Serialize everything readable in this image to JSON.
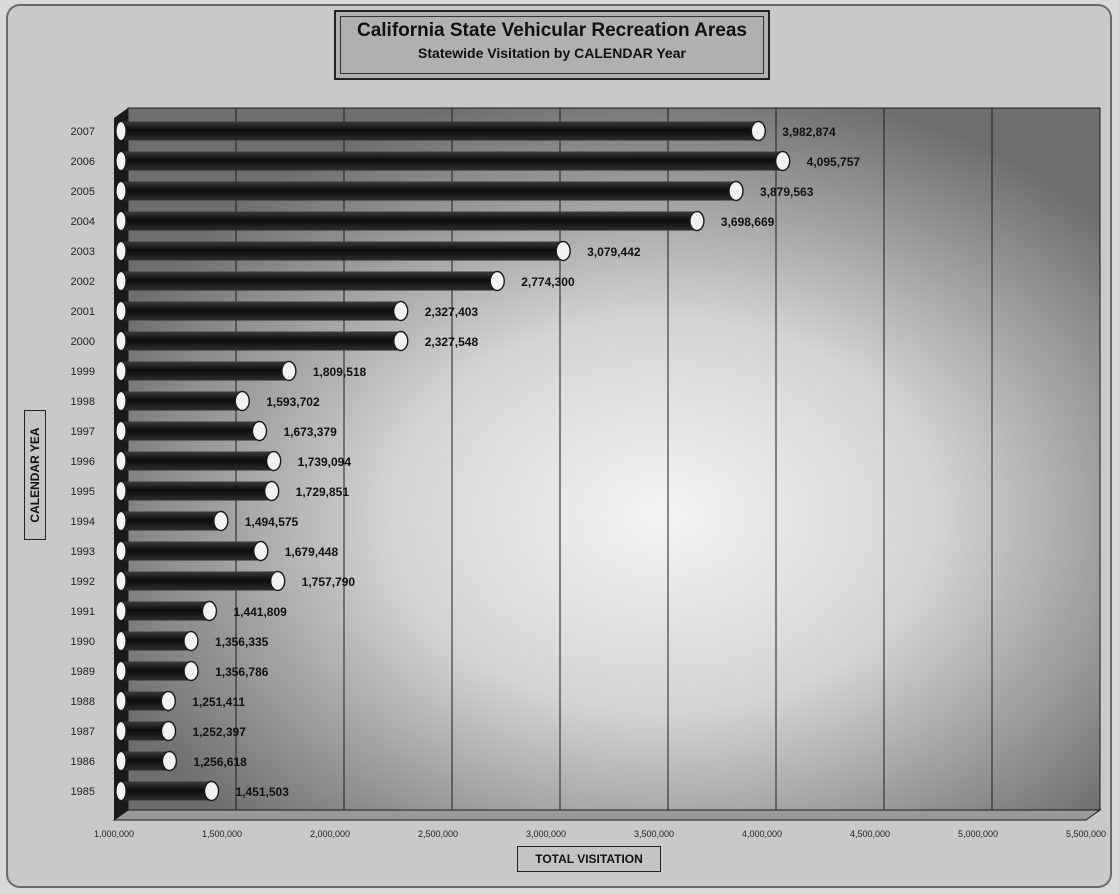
{
  "chart_data": {
    "type": "bar",
    "orientation": "horizontal",
    "title": "California State Vehicular Recreation Areas",
    "subtitle": "Statewide Visitation by CALENDAR Year",
    "xlabel": "TOTAL VISITATION",
    "ylabel": "CALENDAR YEA",
    "xlim": [
      1000000,
      5500000
    ],
    "xticks": [
      "1,000,000",
      "1,500,000",
      "2,000,000",
      "2,500,000",
      "3,000,000",
      "3,500,000",
      "4,000,000",
      "4,500,000",
      "5,000,000",
      "5,500,000"
    ],
    "grid": "vertical",
    "categories": [
      "2007",
      "2006",
      "2005",
      "2004",
      "2003",
      "2002",
      "2001",
      "2000",
      "1999",
      "1998",
      "1997",
      "1996",
      "1995",
      "1994",
      "1993",
      "1992",
      "1991",
      "1990",
      "1989",
      "1988",
      "1987",
      "1986",
      "1985"
    ],
    "values": [
      3982874,
      4095757,
      3879563,
      3698669,
      3079442,
      2774300,
      2327403,
      2327548,
      1809518,
      1593702,
      1673379,
      1739094,
      1729851,
      1494575,
      1679448,
      1757790,
      1441809,
      1356335,
      1356786,
      1251411,
      1252397,
      1256618,
      1451503
    ],
    "value_labels": [
      "3,982,874",
      "4,095,757",
      "3,879,563",
      "3,698,669",
      "3,079,442",
      "2,774,300",
      "2,327,403",
      "2,327,548",
      "1,809,518",
      "1,593,702",
      "1,673,379",
      "1,739,094",
      "1,729,851",
      "1,494,575",
      "1,679,448",
      "1,757,790",
      "1,441,809",
      "1,356,335",
      "1,356,786",
      "1,251,411",
      "1,252,397",
      "1,256,618",
      "1,451,503"
    ],
    "colors": {
      "bar": "#141414",
      "bar_cap": "#f2f2f2",
      "plot_wall": "#d2d2d2",
      "frame": "#c9c9c9"
    }
  }
}
